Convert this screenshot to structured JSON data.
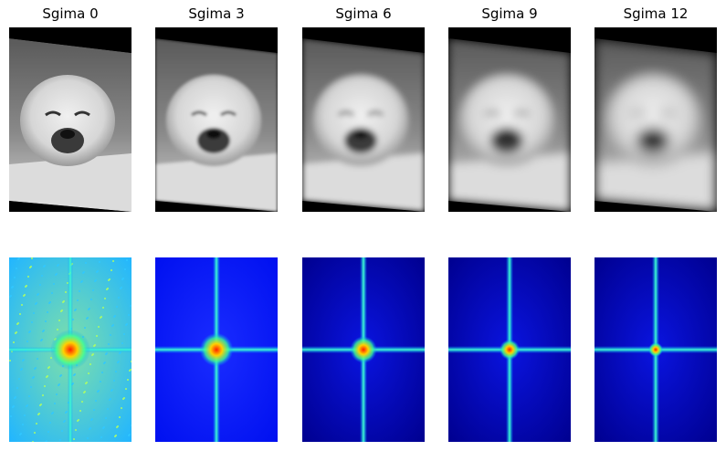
{
  "panels": [
    {
      "title": "Sgima 0",
      "sigma": 0
    },
    {
      "title": "Sgima 3",
      "sigma": 3
    },
    {
      "title": "Sgima 6",
      "sigma": 6
    },
    {
      "title": "Sgima 9",
      "sigma": 9
    },
    {
      "title": "Sgima 12",
      "sigma": 12
    }
  ]
}
